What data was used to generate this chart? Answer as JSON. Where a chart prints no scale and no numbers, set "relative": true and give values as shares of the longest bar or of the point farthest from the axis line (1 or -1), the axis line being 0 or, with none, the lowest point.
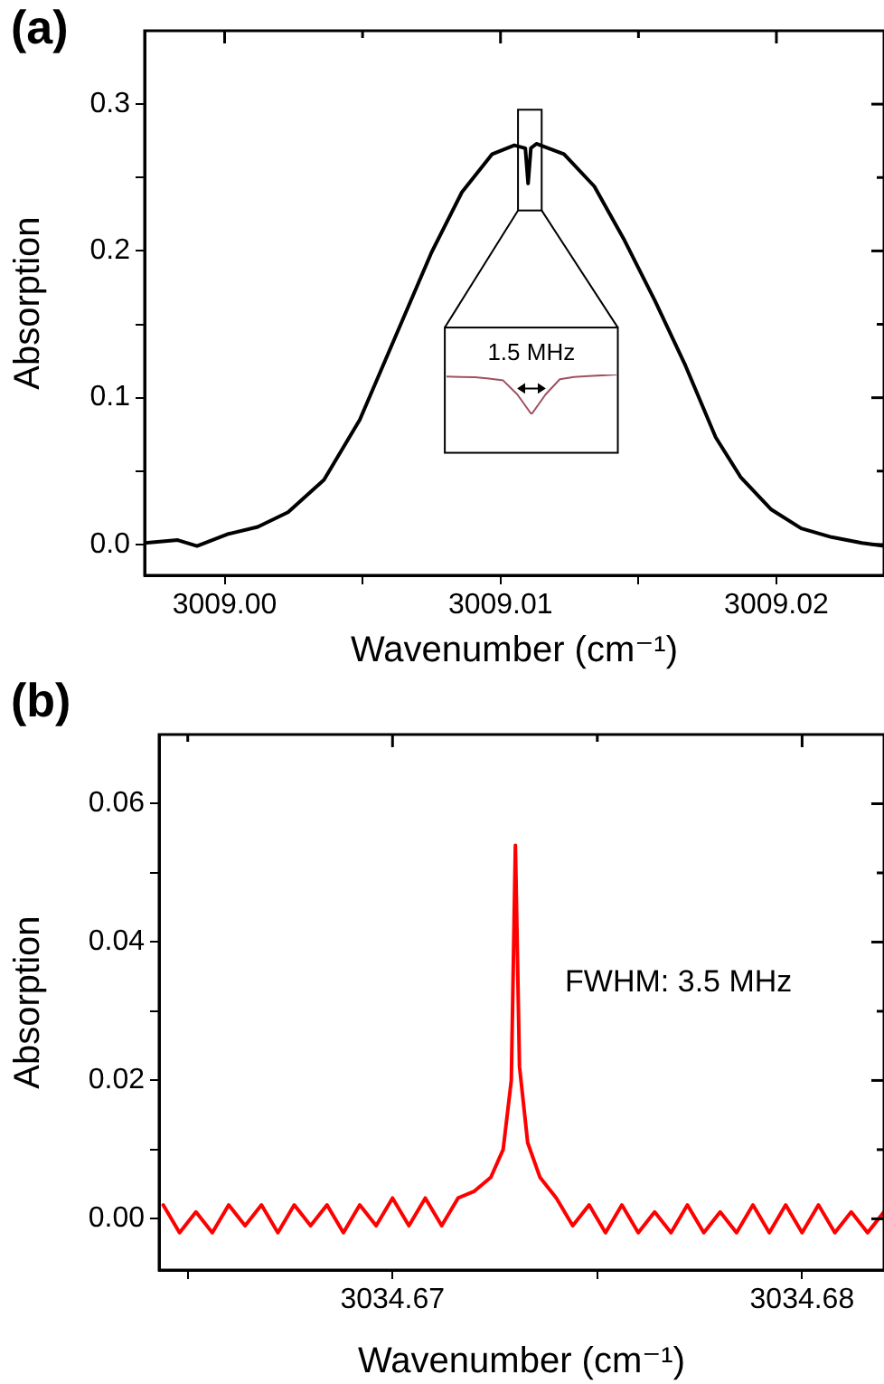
{
  "chart_data": [
    {
      "type": "line",
      "title": "(a)",
      "xlabel": "Wavenumber (cm⁻¹)",
      "ylabel": "Absorption",
      "xlim": [
        3008.9971,
        3009.0239
      ],
      "xticks": [
        {
          "value": 3009.0,
          "label": "3009.00"
        },
        {
          "value": 3009.005,
          "label": null
        },
        {
          "value": 3009.01,
          "label": "3009.01"
        },
        {
          "value": 3009.015,
          "label": null
        },
        {
          "value": 3009.02,
          "label": "3009.02"
        }
      ],
      "ylim": [
        -0.021,
        0.35
      ],
      "yticks": [
        {
          "value": 0,
          "label": "0.0"
        },
        {
          "value": 0.05,
          "label": null
        },
        {
          "value": 0.1,
          "label": "0.1"
        },
        {
          "value": 0.15,
          "label": null
        },
        {
          "value": 0.2,
          "label": "0.2"
        },
        {
          "value": 0.25,
          "label": null
        },
        {
          "value": 0.3,
          "label": "0.3"
        }
      ],
      "marker": "none",
      "line_style": "solid",
      "series": [
        {
          "color": "#000000",
          "x": [
            3008.9971,
            3008.9983,
            3008.999,
            3009.0001,
            3009.0012,
            3009.0023,
            3009.0036,
            3009.0049,
            3009.0062,
            3009.0075,
            3009.0086,
            3009.0097,
            3009.0105,
            3009.0109,
            3009.011,
            3009.0111,
            3009.0113,
            3009.0123,
            3009.0134,
            3009.0145,
            3009.0156,
            3009.0167,
            3009.0178,
            3009.0187,
            3009.0198,
            3009.0209,
            3009.022,
            3009.0231,
            3009.0239
          ],
          "values": [
            0.001,
            0.003,
            -0.001,
            0.007,
            0.012,
            0.022,
            0.044,
            0.085,
            0.142,
            0.199,
            0.24,
            0.266,
            0.272,
            0.27,
            0.246,
            0.27,
            0.273,
            0.266,
            0.244,
            0.207,
            0.166,
            0.122,
            0.073,
            0.046,
            0.024,
            0.011,
            0.005,
            0.001,
            -0.001
          ]
        }
      ]
    },
    {
      "type": "line",
      "title": "(b)",
      "xlabel": "Wavenumber (cm⁻¹)",
      "ylabel": "Absorption",
      "annotations": [
        "FWHM: 3.5 MHz"
      ],
      "xlim": [
        3034.6643,
        3034.682
      ],
      "xticks": [
        {
          "value": 3034.665,
          "label": null
        },
        {
          "value": 3034.67,
          "label": "3034.67"
        },
        {
          "value": 3034.675,
          "label": null
        },
        {
          "value": 3034.68,
          "label": "3034.68"
        }
      ],
      "ylim": [
        -0.0074,
        0.07
      ],
      "yticks": [
        {
          "value": 0,
          "label": "0.00"
        },
        {
          "value": 0.01,
          "label": null
        },
        {
          "value": 0.02,
          "label": "0.02"
        },
        {
          "value": 0.03,
          "label": null
        },
        {
          "value": 0.04,
          "label": "0.04"
        },
        {
          "value": 0.05,
          "label": null
        },
        {
          "value": 0.06,
          "label": "0.06"
        }
      ],
      "marker": "none",
      "line_style": "solid",
      "series": [
        {
          "color": "#ff0000",
          "x": [
            3034.6644,
            3034.6648,
            3034.6652,
            3034.6656,
            3034.666,
            3034.6664,
            3034.6668,
            3034.6672,
            3034.6676,
            3034.668,
            3034.6684,
            3034.6688,
            3034.6692,
            3034.6696,
            3034.67,
            3034.6704,
            3034.6708,
            3034.6712,
            3034.6716,
            3034.672,
            3034.6724,
            3034.6727,
            3034.6729,
            3034.673,
            3034.6731,
            3034.6733,
            3034.6736,
            3034.674,
            3034.6744,
            3034.6748,
            3034.6752,
            3034.6756,
            3034.676,
            3034.6764,
            3034.6768,
            3034.6772,
            3034.6776,
            3034.678,
            3034.6784,
            3034.6788,
            3034.6792,
            3034.6796,
            3034.68,
            3034.6804,
            3034.6808,
            3034.6812,
            3034.6816,
            3034.682
          ],
          "values": [
            0.002,
            -0.002,
            0.001,
            -0.002,
            0.002,
            -0.001,
            0.002,
            -0.002,
            0.002,
            -0.001,
            0.002,
            -0.002,
            0.002,
            -0.001,
            0.003,
            -0.001,
            0.003,
            -0.001,
            0.003,
            0.004,
            0.006,
            0.01,
            0.02,
            0.054,
            0.022,
            0.011,
            0.006,
            0.003,
            -0.001,
            0.002,
            -0.002,
            0.002,
            -0.002,
            0.001,
            -0.002,
            0.002,
            -0.002,
            0.001,
            -0.002,
            0.002,
            -0.002,
            0.002,
            -0.002,
            0.002,
            -0.002,
            0.001,
            -0.002,
            0.001
          ]
        }
      ]
    },
    {
      "type": "line",
      "relative": true,
      "annotations": [
        "1.5 MHz"
      ],
      "marker": "none",
      "line_style": "solid",
      "categories": [
        null,
        null,
        null,
        null,
        null,
        null,
        null,
        null,
        null,
        null,
        null,
        null,
        null
      ],
      "series": [
        {
          "color": "#a05060",
          "values": [
            0.95,
            0.94,
            0.93,
            0.9,
            0.85,
            0.5,
            0,
            0.5,
            0.88,
            0.94,
            0.96,
            0.98,
            1
          ]
        }
      ]
    }
  ]
}
